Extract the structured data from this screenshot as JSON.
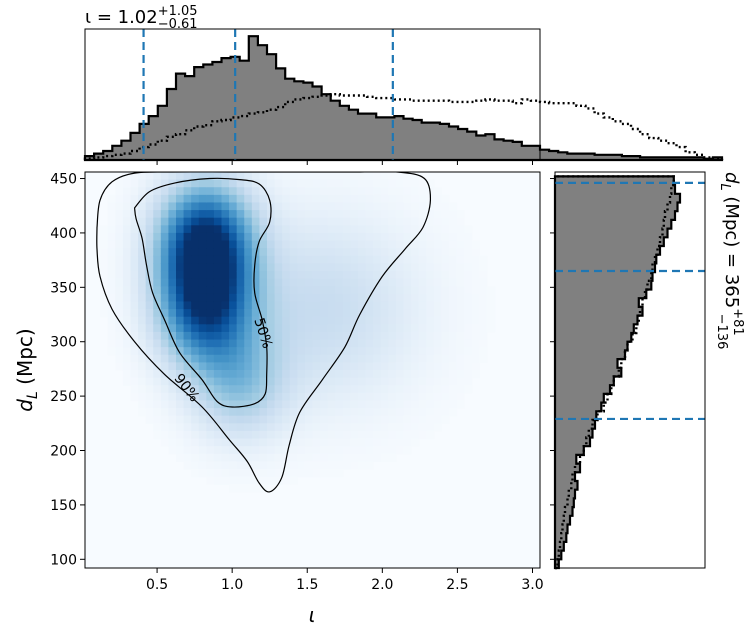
{
  "chart_data": [
    {
      "type": "heatmap",
      "xlabel": "ι",
      "ylabel": "d_L (Mpc)",
      "xlim": [
        0.02,
        3.05
      ],
      "ylim": [
        92,
        456
      ],
      "xticks": [
        "0.5",
        "1.0",
        "1.5",
        "2.0",
        "2.5",
        "3.0"
      ],
      "xtick_values": [
        0.5,
        1.0,
        1.5,
        2.0,
        2.5,
        3.0
      ],
      "yticks": [
        "100",
        "150",
        "200",
        "250",
        "300",
        "350",
        "400",
        "450"
      ],
      "ytick_values": [
        100,
        150,
        200,
        250,
        300,
        350,
        400,
        450
      ],
      "colormap": "Blues",
      "density_peaks": [
        {
          "x": 0.82,
          "y": 392,
          "weight": 1.0
        },
        {
          "x": 0.82,
          "y": 330,
          "weight": 0.8
        },
        {
          "x": 1.05,
          "y": 260,
          "weight": 0.35
        },
        {
          "x": 1.6,
          "y": 330,
          "weight": 0.25
        }
      ],
      "contours": [
        {
          "label": "50%",
          "level": 0.5,
          "points": [
            [
              0.35,
              423
            ],
            [
              0.45,
              438
            ],
            [
              0.62,
              446
            ],
            [
              0.85,
              450
            ],
            [
              1.05,
              449
            ],
            [
              1.18,
              445
            ],
            [
              1.25,
              430
            ],
            [
              1.25,
              410
            ],
            [
              1.18,
              392
            ],
            [
              1.15,
              370
            ],
            [
              1.15,
              345
            ],
            [
              1.2,
              320
            ],
            [
              1.23,
              295
            ],
            [
              1.23,
              270
            ],
            [
              1.22,
              252
            ],
            [
              1.15,
              243
            ],
            [
              1.0,
              240
            ],
            [
              0.9,
              245
            ],
            [
              0.8,
              265
            ],
            [
              0.65,
              290
            ],
            [
              0.55,
              320
            ],
            [
              0.47,
              345
            ],
            [
              0.43,
              370
            ],
            [
              0.4,
              395
            ],
            [
              0.36,
              413
            ],
            [
              0.35,
              423
            ]
          ]
        },
        {
          "label": "90%",
          "level": 0.9,
          "points": [
            [
              0.1,
              405
            ],
            [
              0.12,
              430
            ],
            [
              0.2,
              447
            ],
            [
              0.35,
              455
            ],
            [
              0.6,
              456
            ],
            [
              1.0,
              456
            ],
            [
              1.4,
              456
            ],
            [
              1.8,
              456
            ],
            [
              2.1,
              456
            ],
            [
              2.28,
              450
            ],
            [
              2.32,
              430
            ],
            [
              2.27,
              405
            ],
            [
              2.15,
              385
            ],
            [
              2.0,
              360
            ],
            [
              1.85,
              325
            ],
            [
              1.75,
              295
            ],
            [
              1.6,
              265
            ],
            [
              1.45,
              235
            ],
            [
              1.38,
              205
            ],
            [
              1.33,
              175
            ],
            [
              1.25,
              162
            ],
            [
              1.18,
              170
            ],
            [
              1.1,
              190
            ],
            [
              0.98,
              210
            ],
            [
              0.8,
              240
            ],
            [
              0.55,
              270
            ],
            [
              0.35,
              300
            ],
            [
              0.2,
              330
            ],
            [
              0.12,
              360
            ],
            [
              0.1,
              385
            ],
            [
              0.1,
              405
            ]
          ]
        }
      ]
    },
    {
      "type": "bar",
      "title": "ι = 1.02",
      "title_sup": "+1.05",
      "title_sub": "−0.61",
      "xlim": [
        0.02,
        3.05
      ],
      "quantile_lines": [
        0.41,
        1.02,
        2.07
      ],
      "line_color": "#1f77b4",
      "series": [
        {
          "style": "filled",
          "bin_start": 0.02,
          "bin_width": 0.0606,
          "values": [
            0.03,
            0.05,
            0.07,
            0.11,
            0.15,
            0.21,
            0.28,
            0.34,
            0.42,
            0.55,
            0.67,
            0.65,
            0.72,
            0.74,
            0.76,
            0.79,
            0.8,
            0.77,
            0.96,
            0.89,
            0.82,
            0.71,
            0.63,
            0.61,
            0.6,
            0.57,
            0.51,
            0.46,
            0.42,
            0.39,
            0.36,
            0.36,
            0.33,
            0.33,
            0.34,
            0.32,
            0.31,
            0.29,
            0.29,
            0.28,
            0.26,
            0.24,
            0.22,
            0.19,
            0.2,
            0.16,
            0.15,
            0.14,
            0.11,
            0.11,
            0.08,
            0.07,
            0.06,
            0.05,
            0.05,
            0.05,
            0.04,
            0.04,
            0.04,
            0.03,
            0.03,
            0.02,
            0.02,
            0.02,
            0.02,
            0.02,
            0.02,
            0.02,
            0.01,
            0.02
          ]
        },
        {
          "style": "dotted",
          "bin_start": 0.02,
          "bin_width": 0.0606,
          "values": [
            0.01,
            0.02,
            0.03,
            0.04,
            0.05,
            0.07,
            0.1,
            0.12,
            0.15,
            0.18,
            0.2,
            0.23,
            0.26,
            0.27,
            0.3,
            0.31,
            0.33,
            0.34,
            0.36,
            0.37,
            0.39,
            0.41,
            0.45,
            0.47,
            0.48,
            0.49,
            0.5,
            0.51,
            0.5,
            0.5,
            0.5,
            0.49,
            0.48,
            0.48,
            0.47,
            0.47,
            0.46,
            0.46,
            0.46,
            0.46,
            0.45,
            0.45,
            0.45,
            0.46,
            0.47,
            0.46,
            0.46,
            0.44,
            0.47,
            0.46,
            0.45,
            0.44,
            0.44,
            0.44,
            0.42,
            0.4,
            0.36,
            0.33,
            0.3,
            0.28,
            0.24,
            0.2,
            0.17,
            0.15,
            0.13,
            0.1,
            0.06,
            0.04,
            0.02,
            0.01
          ]
        }
      ]
    },
    {
      "type": "bar",
      "orientation": "horizontal",
      "title": "d_L (Mpc) = 365",
      "title_sup": "+81",
      "title_sub": "−136",
      "ylim": [
        92,
        456
      ],
      "quantile_lines": [
        229,
        365,
        446
      ],
      "line_color": "#1f77b4",
      "series": [
        {
          "style": "filled",
          "bin_start": 92,
          "bin_width": 8,
          "values": [
            0.03,
            0.05,
            0.07,
            0.09,
            0.1,
            0.12,
            0.14,
            0.15,
            0.16,
            0.18,
            0.16,
            0.2,
            0.17,
            0.23,
            0.28,
            0.3,
            0.32,
            0.33,
            0.37,
            0.39,
            0.44,
            0.47,
            0.53,
            0.5,
            0.56,
            0.58,
            0.61,
            0.63,
            0.66,
            0.7,
            0.67,
            0.73,
            0.77,
            0.78,
            0.8,
            0.81,
            0.84,
            0.87,
            0.9,
            0.93,
            0.96,
            0.98,
            1.0,
            0.96,
            0.95
          ]
        },
        {
          "style": "dotted",
          "bin_start": 92,
          "bin_width": 8,
          "values": [
            0.02,
            0.03,
            0.04,
            0.05,
            0.06,
            0.07,
            0.08,
            0.1,
            0.11,
            0.13,
            0.14,
            0.16,
            0.2,
            0.23,
            0.25,
            0.27,
            0.3,
            0.34,
            0.39,
            0.42,
            0.45,
            0.47,
            0.51,
            0.53,
            0.56,
            0.58,
            0.62,
            0.65,
            0.67,
            0.68,
            0.7,
            0.72,
            0.74,
            0.77,
            0.78,
            0.8,
            0.82,
            0.84,
            0.86,
            0.87,
            0.88,
            0.9,
            0.92,
            0.93,
            0.95
          ]
        }
      ]
    }
  ]
}
